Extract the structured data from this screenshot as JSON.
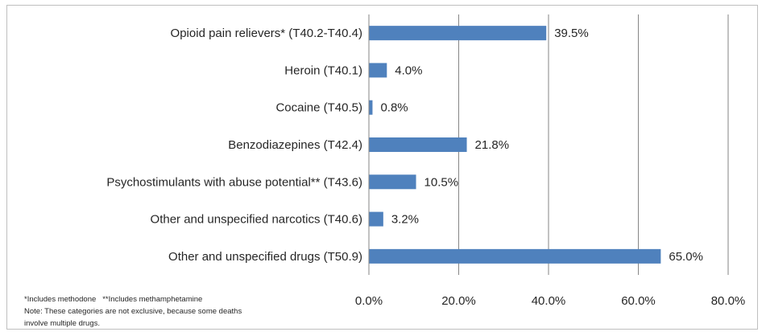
{
  "chart_data": {
    "type": "bar",
    "orientation": "horizontal",
    "categories": [
      "Opioid pain relievers* (T40.2-T40.4)",
      "Heroin (T40.1)",
      "Cocaine (T40.5)",
      "Benzodiazepines (T42.4)",
      "Psychostimulants with abuse potential** (T43.6)",
      "Other and unspecified narcotics (T40.6)",
      "Other and unspecified drugs (T50.9)"
    ],
    "values": [
      39.5,
      4.0,
      0.8,
      21.8,
      10.5,
      3.2,
      65.0
    ],
    "value_labels": [
      "39.5%",
      "4.0%",
      "0.8%",
      "21.8%",
      "10.5%",
      "3.2%",
      "65.0%"
    ],
    "xlim": [
      0,
      80
    ],
    "xticks": [
      0,
      20,
      40,
      60,
      80
    ],
    "xtick_labels": [
      "0.0%",
      "20.0%",
      "40.0%",
      "60.0%",
      "80.0%"
    ],
    "grid": "vertical",
    "bar_color": "#4f81bd",
    "gridline_color": "#868686"
  },
  "notes": {
    "footnote_1": "*Includes methodone",
    "footnote_2": "**Includes methamphetamine",
    "note_line_1": "Note: These categories are not exclusive, because some deaths",
    "note_line_2": "involve multiple drugs."
  }
}
